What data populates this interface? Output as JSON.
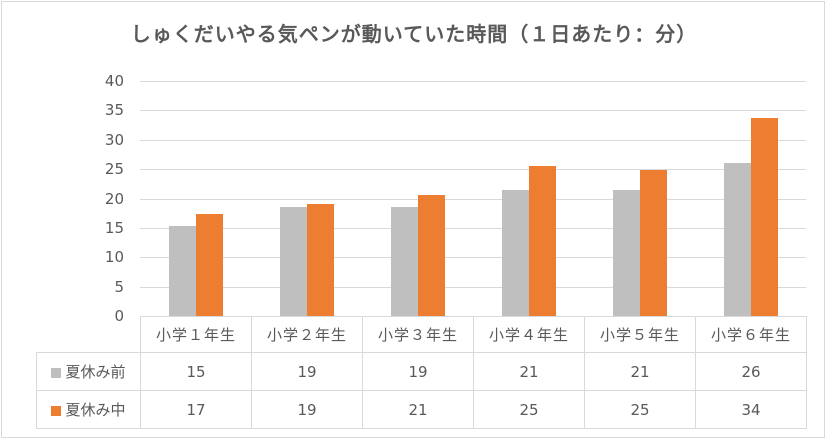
{
  "chart_data": {
    "type": "bar",
    "title": "しゅくだいやる気ペンが動いていた時間（１日あたり：分）",
    "xlabel": "",
    "ylabel": "",
    "ylim": [
      0,
      40
    ],
    "yticks": [
      0,
      5,
      10,
      15,
      20,
      25,
      30,
      35,
      40
    ],
    "grid": true,
    "legend_position": "data-table",
    "categories": [
      "小学１年生",
      "小学２年生",
      "小学３年生",
      "小学４年生",
      "小学５年生",
      "小学６年生"
    ],
    "series": [
      {
        "name": "夏休み前",
        "color": "#bfbfbf",
        "values": [
          15.3,
          18.6,
          18.6,
          21.4,
          21.4,
          26.0
        ],
        "table_values": [
          "15",
          "19",
          "19",
          "21",
          "21",
          "26"
        ]
      },
      {
        "name": "夏休み中",
        "color": "#ed7d31",
        "values": [
          17.3,
          19.0,
          20.6,
          25.5,
          24.8,
          33.7
        ],
        "table_values": [
          "17",
          "19",
          "21",
          "25",
          "25",
          "34"
        ]
      }
    ]
  },
  "title": "しゅくだいやる気ペンが動いていた時間（１日あたり：分）",
  "yticks": [
    "40",
    "35",
    "30",
    "25",
    "20",
    "15",
    "10",
    "5",
    "0"
  ],
  "categories": [
    "小学１年生",
    "小学２年生",
    "小学３年生",
    "小学４年生",
    "小学５年生",
    "小学６年生"
  ],
  "series": [
    {
      "name": "夏休み前",
      "values": [
        "15",
        "19",
        "19",
        "21",
        "21",
        "26"
      ]
    },
    {
      "name": "夏休み中",
      "values": [
        "17",
        "19",
        "21",
        "25",
        "25",
        "34"
      ]
    }
  ]
}
